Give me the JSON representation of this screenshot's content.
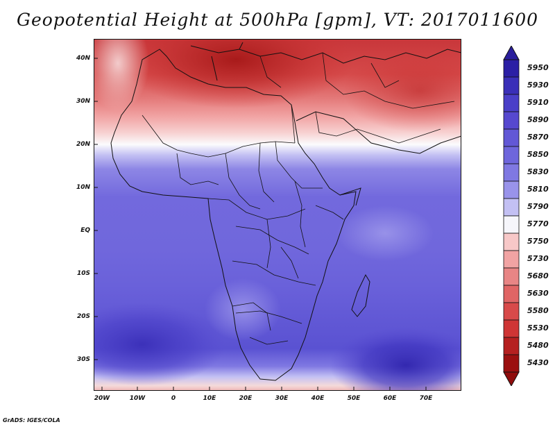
{
  "title": "Geopotential Height at 500hPa [gpm], VT: 2017011600",
  "credit": "GrADS: IGES/COLA",
  "map": {
    "projection": "latlon",
    "lon_range": [
      -22,
      80
    ],
    "lat_range": [
      -37,
      45
    ],
    "lat_ticks": [
      "40N",
      "30N",
      "20N",
      "10N",
      "EQ",
      "10S",
      "20S",
      "30S"
    ],
    "lon_ticks": [
      "20W",
      "10W",
      "0",
      "10E",
      "20E",
      "30E",
      "40E",
      "50E",
      "60E",
      "70E"
    ],
    "field": "500hPa geopotential height",
    "units": "gpm"
  },
  "colorbar": {
    "levels": [
      "5950",
      "5930",
      "5910",
      "5890",
      "5870",
      "5850",
      "5830",
      "5810",
      "5790",
      "5770",
      "5750",
      "5730",
      "5680",
      "5630",
      "5580",
      "5530",
      "5480",
      "5430"
    ],
    "colors": [
      "#2b1fa5",
      "#3a2fb8",
      "#4a3fc8",
      "#5648cf",
      "#6258d6",
      "#6e66dc",
      "#7f78e2",
      "#9993ea",
      "#c3c0f3",
      "#f6f6fb",
      "#f7c8c8",
      "#f1a3a3",
      "#e88585",
      "#e06565",
      "#d84a4a",
      "#cf3535",
      "#b52020",
      "#9b1010"
    ],
    "top_color": "#2a1e9c",
    "bottom_color": "#8f0c0c"
  }
}
